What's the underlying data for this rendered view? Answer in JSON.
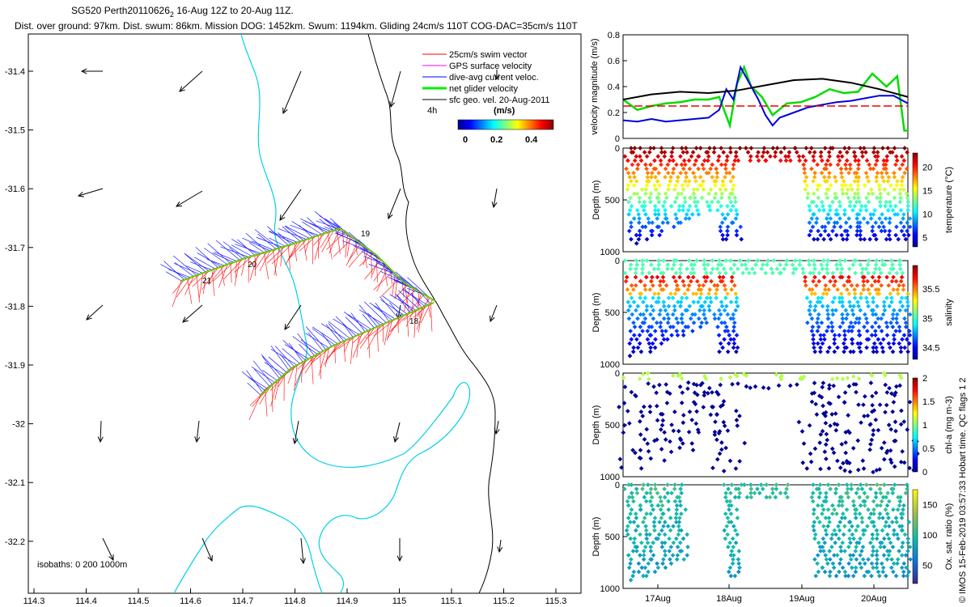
{
  "header": {
    "title_prefix": "SG520 Perth20110626",
    "title_sub": "2",
    "title_suffix": " 16-Aug 12Z to 20-Aug 11Z.",
    "subtitle": "Dist. over ground: 97km. Dist. swum: 86km. Mission DOG: 1452km. Swum: 1194km. Gliding 24cm/s 110T COG-DAC=35cm/s 110T"
  },
  "legend": {
    "items": [
      {
        "label": "25cm/s swim vector",
        "color": "#ff0000"
      },
      {
        "label": "GPS surface velocity",
        "color": "#ff00ff"
      },
      {
        "label": "dive-avg current veloc.",
        "color": "#0000ff"
      },
      {
        "label": "net glider velocity",
        "color": "#00ee00"
      },
      {
        "label": "sfc geo. vel. 20-Aug-2011",
        "color": "#000000"
      }
    ],
    "time_label": "4h",
    "colorbar_title": "(m/s)",
    "colorbar_ticks": [
      "0",
      "0.2",
      "0.4"
    ]
  },
  "map": {
    "isobaths_label": "isobaths: 0   200  1000m",
    "track_labels": [
      "19",
      "20",
      "21",
      "18"
    ],
    "lon_ticks": [
      "114.3",
      "114.4",
      "114.5",
      "114.6",
      "114.7",
      "114.8",
      "114.9",
      "115",
      "115.1",
      "115.2",
      "115.3"
    ],
    "lat_ticks": [
      "-31.4",
      "-31.5",
      "-31.6",
      "-31.7",
      "-31.8",
      "-31.9",
      "-32",
      "-32.1",
      "-32.2"
    ]
  },
  "chart_data": [
    {
      "type": "line",
      "title": "",
      "ylabel": "velocity magnitude (m/s)",
      "ylim": [
        0,
        0.8
      ],
      "yticks": [
        "0",
        "0.2",
        "0.4",
        "0.6",
        "0.8"
      ],
      "xlim": [
        0,
        4
      ],
      "series": [
        {
          "name": "net glider velocity",
          "color": "#00dd00",
          "x": [
            0,
            0.2,
            0.4,
            0.6,
            0.8,
            1.0,
            1.2,
            1.35,
            1.5,
            1.6,
            1.7,
            1.8,
            1.95,
            2.1,
            2.3,
            2.5,
            2.7,
            2.9,
            3.1,
            3.3,
            3.5,
            3.7,
            3.85,
            3.95,
            4.0
          ],
          "y": [
            0.3,
            0.22,
            0.25,
            0.27,
            0.28,
            0.3,
            0.3,
            0.32,
            0.1,
            0.42,
            0.55,
            0.4,
            0.32,
            0.18,
            0.27,
            0.28,
            0.32,
            0.38,
            0.35,
            0.36,
            0.5,
            0.4,
            0.48,
            0.06,
            0.06
          ]
        },
        {
          "name": "dive-avg current",
          "color": "#0000dd",
          "x": [
            0,
            0.2,
            0.4,
            0.6,
            0.8,
            1.0,
            1.2,
            1.35,
            1.45,
            1.55,
            1.65,
            1.75,
            1.9,
            2.0,
            2.1,
            2.2,
            2.4,
            2.6,
            2.8,
            3.0,
            3.2,
            3.4,
            3.6,
            3.8,
            4.0
          ],
          "y": [
            0.14,
            0.13,
            0.15,
            0.13,
            0.14,
            0.15,
            0.16,
            0.22,
            0.38,
            0.3,
            0.55,
            0.45,
            0.3,
            0.18,
            0.1,
            0.16,
            0.2,
            0.24,
            0.26,
            0.28,
            0.29,
            0.31,
            0.33,
            0.33,
            0.27
          ]
        },
        {
          "name": "sfc geo. vel.",
          "color": "#000000",
          "x": [
            0,
            0.4,
            0.8,
            1.2,
            1.6,
            2.0,
            2.4,
            2.8,
            3.2,
            3.6,
            4.0
          ],
          "y": [
            0.3,
            0.34,
            0.36,
            0.35,
            0.37,
            0.41,
            0.45,
            0.46,
            0.43,
            0.38,
            0.32
          ]
        },
        {
          "name": "threshold",
          "color": "#ee0000",
          "x": [
            0,
            4
          ],
          "y": [
            0.25,
            0.25
          ]
        }
      ]
    },
    {
      "type": "scatter",
      "ylabel": "Depth (m)",
      "yticks": [
        "0",
        "500",
        "1000"
      ],
      "colorbar": {
        "label": "temperature (°C)",
        "ticks": [
          "5",
          "10",
          "15",
          "20"
        ],
        "range": [
          3,
          23
        ]
      }
    },
    {
      "type": "scatter",
      "ylabel": "Depth (m)",
      "yticks": [
        "0",
        "500",
        "1000"
      ],
      "colorbar": {
        "label": "salinity",
        "ticks": [
          "34.5",
          "35",
          "35.5"
        ],
        "range": [
          34.3,
          35.9
        ]
      }
    },
    {
      "type": "scatter",
      "ylabel": "Depth (m)",
      "yticks": [
        "0",
        "500",
        "1000"
      ],
      "colorbar": {
        "label": "chl-a (mg m-3)",
        "ticks": [
          "0",
          "0.5",
          "1",
          "1.5",
          "2"
        ],
        "range": [
          0,
          2
        ]
      }
    },
    {
      "type": "scatter",
      "ylabel": "Depth (m)",
      "yticks": [
        "0",
        "500",
        "1000"
      ],
      "colorbar": {
        "label": "Ox. sat. ratio (%)",
        "ticks": [
          "50",
          "100",
          "150"
        ],
        "range": [
          20,
          175
        ]
      },
      "xticks": [
        "17Aug",
        "18Aug",
        "19Aug",
        "20Aug"
      ]
    }
  ],
  "side_notes": {
    "qc_flags": "QC flags 1  2",
    "hobart_time": "15-Feb-2019 03:57:33 Hobart time.",
    "copyright": "© IMOS"
  }
}
